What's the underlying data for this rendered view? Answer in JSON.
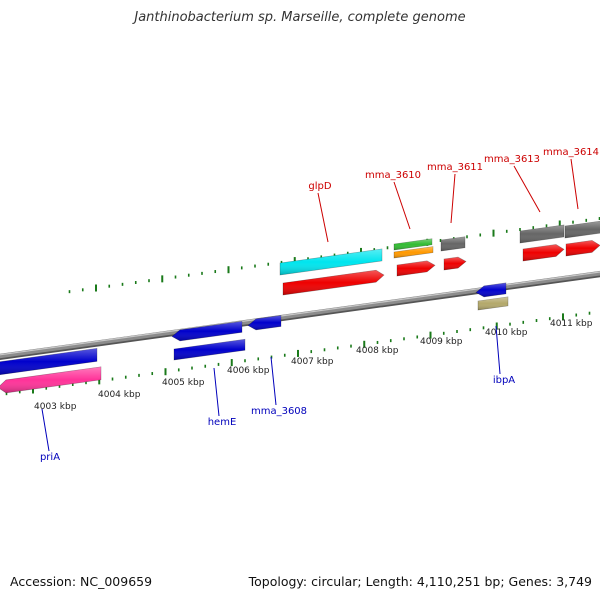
{
  "title": "Janthinobacterium sp. Marseille, complete genome",
  "footer": {
    "accession": "Accession: NC_009659",
    "summary": "Topology: circular; Length: 4,110,251 bp; Genes: 3,749"
  },
  "colors": {
    "backbone": "#8c8c8c",
    "tick": "#1a7a1a",
    "forward_label": "#cc0000",
    "reverse_label": "#0000bb",
    "kbp_label": "#222222"
  },
  "axis": {
    "kbp_labels": [
      "4003 kbp",
      "4004 kbp",
      "4005 kbp",
      "4006 kbp",
      "4007 kbp",
      "4008 kbp",
      "4009 kbp",
      "4010 kbp",
      "4011 kbp"
    ]
  },
  "features": [
    {
      "name": "priA",
      "strand": "reverse",
      "colors": [
        "#0000cc",
        "#ff3399"
      ]
    },
    {
      "name": "hemE",
      "strand": "reverse",
      "colors": [
        "#0000cc",
        "#0000cc"
      ]
    },
    {
      "name": "mma_3608",
      "strand": "reverse",
      "colors": [
        "#0000cc"
      ]
    },
    {
      "name": "glpD",
      "strand": "forward",
      "colors": [
        "#00e5ee",
        "#ee0000"
      ]
    },
    {
      "name": "mma_3610",
      "strand": "forward",
      "colors": [
        "#33bb33",
        "#ff9900",
        "#ee0000"
      ]
    },
    {
      "name": "mma_3611",
      "strand": "forward",
      "colors": [
        "#666666",
        "#ee0000"
      ]
    },
    {
      "name": "ibpA",
      "strand": "reverse",
      "colors": [
        "#0000cc",
        "#b3a86b"
      ]
    },
    {
      "name": "mma_3613",
      "strand": "forward",
      "colors": [
        "#666666",
        "#ee0000"
      ]
    },
    {
      "name": "mma_3614",
      "strand": "forward",
      "colors": [
        "#666666",
        "#ee0000"
      ]
    }
  ]
}
